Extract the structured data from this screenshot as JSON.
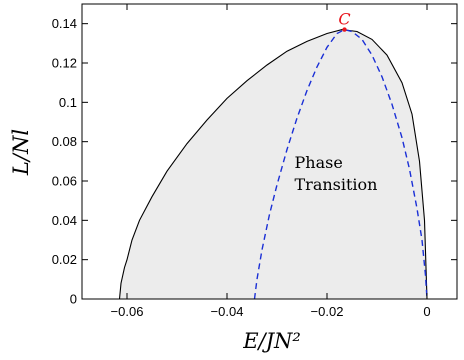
{
  "chart_data": {
    "type": "line",
    "xlabel": "E/JN²",
    "ylabel": "L/Nl",
    "xlim": [
      -0.069,
      0.006
    ],
    "ylim": [
      0,
      0.15
    ],
    "xticks": [
      {
        "value": -0.06,
        "label": "−0.06"
      },
      {
        "value": -0.04,
        "label": "−0.04"
      },
      {
        "value": -0.02,
        "label": "−0.02"
      },
      {
        "value": 0,
        "label": "0"
      }
    ],
    "yticks": [
      {
        "value": 0,
        "label": "0"
      },
      {
        "value": 0.02,
        "label": "0.02"
      },
      {
        "value": 0.04,
        "label": "0.04"
      },
      {
        "value": 0.06,
        "label": "0.06"
      },
      {
        "value": 0.08,
        "label": "0.08"
      },
      {
        "value": 0.1,
        "label": "0.1"
      },
      {
        "value": 0.12,
        "label": "0.12"
      },
      {
        "value": 0.14,
        "label": "0.14"
      }
    ],
    "grid": false,
    "series": [
      {
        "style": "solid",
        "color": "#000000",
        "filled": true,
        "fill_color": "#ececec",
        "x": [
          -0.0615,
          -0.0612,
          -0.0605,
          -0.06,
          -0.059,
          -0.0575,
          -0.055,
          -0.052,
          -0.048,
          -0.044,
          -0.04,
          -0.036,
          -0.032,
          -0.028,
          -0.024,
          -0.02,
          -0.017,
          -0.014,
          -0.011,
          -0.008,
          -0.005,
          -0.003,
          -0.0015,
          -0.0005,
          0.0
        ],
        "y": [
          0.0,
          0.008,
          0.016,
          0.02,
          0.03,
          0.04,
          0.052,
          0.065,
          0.079,
          0.091,
          0.102,
          0.111,
          0.119,
          0.126,
          0.131,
          0.135,
          0.137,
          0.136,
          0.132,
          0.124,
          0.11,
          0.094,
          0.07,
          0.04,
          0.0
        ]
      },
      {
        "style": "dashed",
        "color": "#1a2fd6",
        "x": [
          -0.0345,
          -0.034,
          -0.033,
          -0.0315,
          -0.03,
          -0.028,
          -0.026,
          -0.024,
          -0.022,
          -0.02,
          -0.018,
          -0.0165,
          -0.015,
          -0.013,
          -0.011,
          -0.009,
          -0.007,
          -0.005,
          -0.0035,
          -0.002,
          -0.001,
          -0.0003,
          0.0
        ],
        "y": [
          0.0,
          0.01,
          0.025,
          0.043,
          0.058,
          0.076,
          0.092,
          0.106,
          0.118,
          0.128,
          0.135,
          0.137,
          0.136,
          0.132,
          0.124,
          0.113,
          0.099,
          0.082,
          0.066,
          0.046,
          0.03,
          0.012,
          0.0
        ]
      }
    ],
    "annotations": [
      {
        "text": "Phase",
        "x": -0.0265,
        "y": 0.0665
      },
      {
        "text": "Transition",
        "x": -0.0265,
        "y": 0.0555
      }
    ],
    "points": [
      {
        "label": "C",
        "x": -0.0165,
        "y": 0.137,
        "color": "#e8141c"
      }
    ]
  }
}
